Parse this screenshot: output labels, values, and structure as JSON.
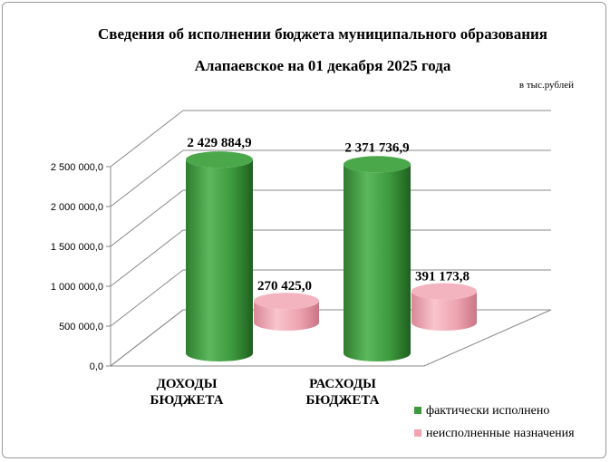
{
  "chart_data": {
    "type": "bar",
    "title_line1": "Сведения об исполнении бюджета муниципального образования",
    "title_line2": "Алапаевское на 01 декабря 2025 года",
    "unit_note": "в тыс.рублей",
    "categories": [
      [
        "ДОХОДЫ",
        "БЮДЖЕТА"
      ],
      [
        "РАСХОДЫ",
        "БЮДЖЕТА"
      ]
    ],
    "series": [
      {
        "name": "фактически исполнено",
        "color": "#3e9a3e",
        "values": [
          2429884.9,
          2371736.9
        ],
        "labels": [
          "2 429 884,9",
          "2 371 736,9"
        ]
      },
      {
        "name": "неисполненные назначения",
        "color": "#f1a3b0",
        "values": [
          270425.0,
          391173.8
        ],
        "labels": [
          "270 425,0",
          "391 173,8"
        ]
      }
    ],
    "ylim": [
      0,
      2500000
    ],
    "yticks": [
      0,
      500000,
      1000000,
      1500000,
      2000000,
      2500000
    ],
    "ytick_labels": [
      "0,0",
      "500 000,0",
      "1 000 000,0",
      "1 500 000,0",
      "2 000 000,0",
      "2 500 000,0"
    ],
    "grid": true,
    "legend_position": "bottom-right",
    "style": "3d-cylinder"
  }
}
